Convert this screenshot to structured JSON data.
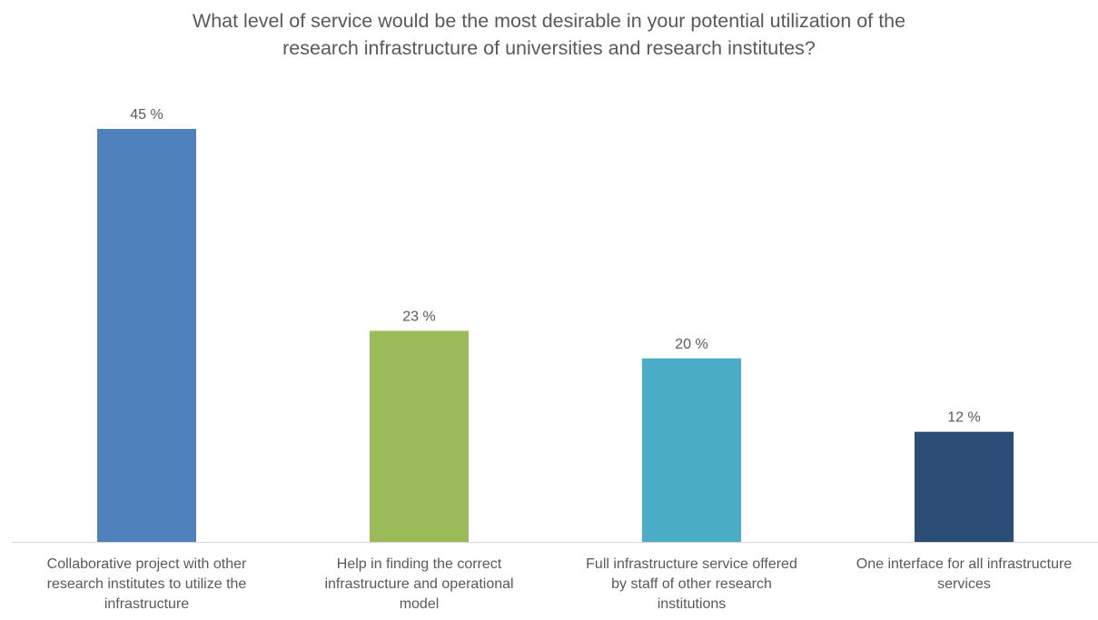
{
  "chart_data": {
    "type": "bar",
    "title": [
      "What level of service would be the most desirable in your potential utilization of the",
      "research infrastructure of universities and research institutes?"
    ],
    "categories": [
      [
        "Collaborative project with other",
        "research institutes to utilize the",
        "infrastructure"
      ],
      [
        "Help in finding the correct",
        "infrastructure and operational",
        "model"
      ],
      [
        "Full infrastructure service offered",
        "by staff of other research",
        "institutions"
      ],
      [
        "One interface for all infrastructure",
        "services"
      ]
    ],
    "values": [
      45,
      23,
      20,
      12
    ],
    "data_labels": [
      "45 %",
      "23 %",
      "20 %",
      "12 %"
    ],
    "colors": [
      "#4f81bd",
      "#9bbb59",
      "#4bacc6",
      "#2c4d75"
    ],
    "ylim": [
      0,
      45
    ],
    "grid": false,
    "legend": "none"
  }
}
